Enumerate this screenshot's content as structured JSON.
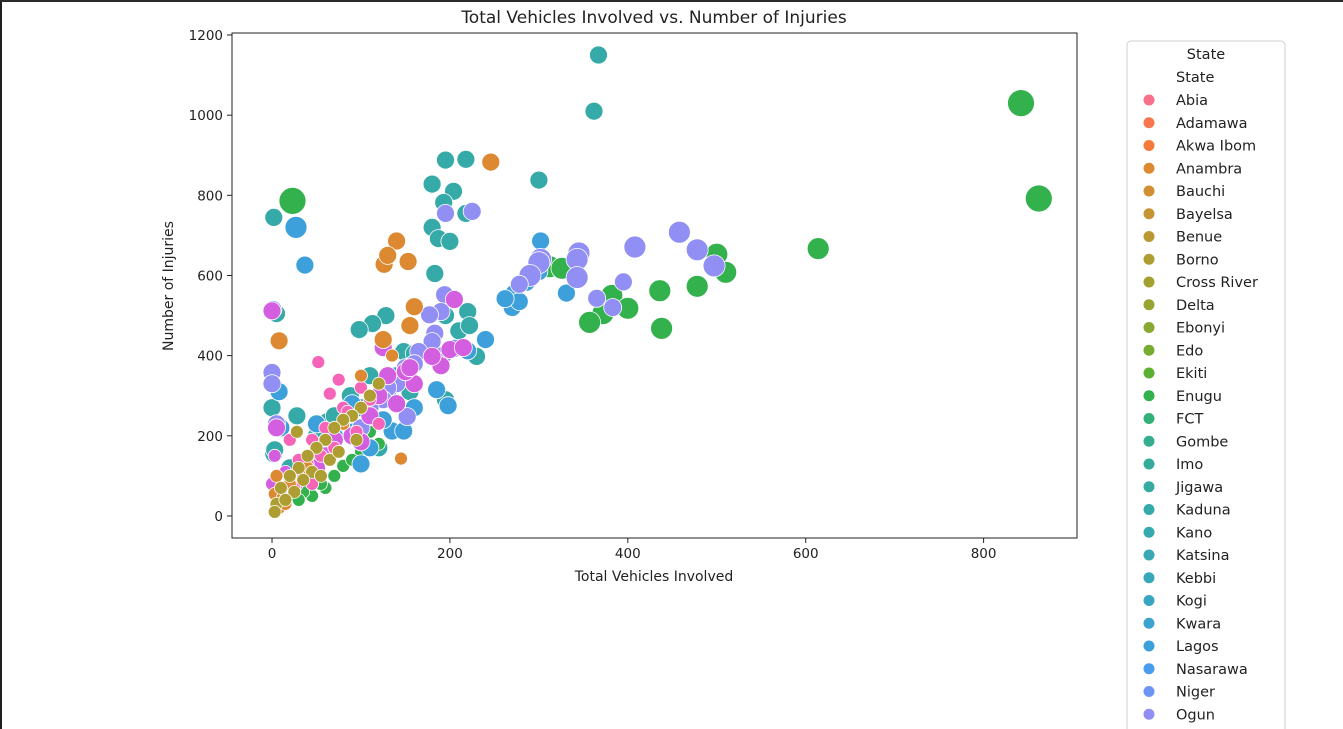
{
  "chart_data": {
    "type": "scatter",
    "title": "Total Vehicles Involved vs. Number of Injuries",
    "xlabel": "Total Vehicles Involved",
    "ylabel": "Number of Injuries",
    "xlim": [
      -45,
      905
    ],
    "ylim": [
      -55,
      1205
    ],
    "xticks": [
      0,
      200,
      400,
      600,
      800
    ],
    "yticks": [
      0,
      200,
      400,
      600,
      800,
      1000,
      1200
    ],
    "grid": false,
    "legend": {
      "title": "State",
      "subtitle": "State",
      "placement": "outside-right",
      "entries": [
        {
          "name": "Abia",
          "color": "#f77189"
        },
        {
          "name": "Adamawa",
          "color": "#f7754f"
        },
        {
          "name": "Akwa Ibom",
          "color": "#f5793a"
        },
        {
          "name": "Anambra",
          "color": "#dc8932"
        },
        {
          "name": "Bauchi",
          "color": "#d28e32"
        },
        {
          "name": "Bayelsa",
          "color": "#c69532"
        },
        {
          "name": "Benue",
          "color": "#bb9832"
        },
        {
          "name": "Borno",
          "color": "#ae9d31"
        },
        {
          "name": "Cross River",
          "color": "#a2a031"
        },
        {
          "name": "Delta",
          "color": "#97a431"
        },
        {
          "name": "Ebonyi",
          "color": "#89a832"
        },
        {
          "name": "Edo",
          "color": "#77ac31"
        },
        {
          "name": "Ekiti",
          "color": "#5cb031"
        },
        {
          "name": "Enugu",
          "color": "#32b14c"
        },
        {
          "name": "FCT",
          "color": "#33b07a"
        },
        {
          "name": "Gombe",
          "color": "#34ae8e"
        },
        {
          "name": "Imo",
          "color": "#35ac99"
        },
        {
          "name": "Jigawa",
          "color": "#35aba1"
        },
        {
          "name": "Kaduna",
          "color": "#36aaa8"
        },
        {
          "name": "Kano",
          "color": "#36a9ae"
        },
        {
          "name": "Katsina",
          "color": "#37a8b4"
        },
        {
          "name": "Kebbi",
          "color": "#38a7bb"
        },
        {
          "name": "Kogi",
          "color": "#39a5c3"
        },
        {
          "name": "Kwara",
          "color": "#3ba3cd"
        },
        {
          "name": "Lagos",
          "color": "#3da0da"
        },
        {
          "name": "Nasarawa",
          "color": "#4a9ced"
        },
        {
          "name": "Niger",
          "color": "#6d94f3"
        },
        {
          "name": "Ogun",
          "color": "#918ef4"
        }
      ]
    },
    "series": [
      {
        "color": "#36aaa8",
        "points": [
          [
            367,
            1150,
            2
          ],
          [
            362,
            1010,
            2
          ],
          [
            300,
            838,
            2
          ],
          [
            218,
            890,
            2
          ],
          [
            195,
            888,
            2
          ],
          [
            204,
            810,
            2
          ],
          [
            180,
            828,
            2
          ],
          [
            193,
            782,
            2
          ],
          [
            218,
            755,
            2
          ],
          [
            180,
            720,
            2
          ],
          [
            187,
            692,
            2
          ],
          [
            200,
            685,
            2
          ],
          [
            183,
            605,
            2
          ],
          [
            2,
            745,
            2
          ],
          [
            195,
            500,
            2
          ],
          [
            220,
            510,
            2
          ],
          [
            210,
            462,
            2
          ],
          [
            222,
            475,
            2
          ],
          [
            230,
            398,
            2
          ],
          [
            128,
            500,
            2
          ],
          [
            113,
            480,
            2
          ],
          [
            98,
            465,
            2
          ],
          [
            148,
            410,
            2
          ],
          [
            160,
            405,
            2
          ],
          [
            110,
            350,
            2
          ],
          [
            140,
            340,
            2
          ],
          [
            155,
            310,
            2
          ],
          [
            88,
            300,
            2
          ],
          [
            100,
            270,
            2
          ],
          [
            62,
            235,
            2
          ],
          [
            50,
            200,
            2
          ],
          [
            28,
            250,
            2
          ],
          [
            0,
            270,
            2
          ],
          [
            2,
            155,
            2
          ],
          [
            3,
            165,
            2
          ],
          [
            20,
            120,
            2
          ],
          [
            40,
            140,
            2
          ],
          [
            195,
            290,
            2
          ],
          [
            120,
            170,
            2
          ],
          [
            70,
            250,
            2
          ],
          [
            5,
            505,
            2
          ]
        ]
      },
      {
        "color": "#32b14c",
        "points": [
          [
            842,
            1030,
            4
          ],
          [
            862,
            792,
            4
          ],
          [
            23,
            786,
            4
          ],
          [
            614,
            667,
            3
          ],
          [
            500,
            653,
            3
          ],
          [
            510,
            608,
            3
          ],
          [
            478,
            573,
            3
          ],
          [
            436,
            562,
            3
          ],
          [
            438,
            468,
            3
          ],
          [
            382,
            550,
            3
          ],
          [
            400,
            518,
            3
          ],
          [
            372,
            505,
            3
          ],
          [
            357,
            483,
            3
          ],
          [
            312,
            622,
            3
          ],
          [
            326,
            618,
            3
          ],
          [
            100,
            160,
            1
          ],
          [
            80,
            125,
            1
          ],
          [
            60,
            70,
            1
          ],
          [
            45,
            50,
            1
          ],
          [
            90,
            140,
            1
          ],
          [
            120,
            180,
            1
          ],
          [
            70,
            100,
            1
          ],
          [
            55,
            80,
            1
          ],
          [
            35,
            60,
            1
          ],
          [
            110,
            210,
            1
          ],
          [
            65,
            155,
            1
          ],
          [
            30,
            40,
            1
          ]
        ]
      },
      {
        "color": "#3da0da",
        "points": [
          [
            27,
            720,
            3
          ],
          [
            37,
            626,
            2
          ],
          [
            302,
            686,
            2
          ],
          [
            331,
            556,
            2
          ],
          [
            300,
            610,
            2
          ],
          [
            286,
            583,
            2
          ],
          [
            272,
            555,
            2
          ],
          [
            270,
            520,
            2
          ],
          [
            278,
            535,
            2
          ],
          [
            262,
            542,
            2
          ],
          [
            240,
            440,
            2
          ],
          [
            220,
            412,
            2
          ],
          [
            198,
            275,
            2
          ],
          [
            185,
            315,
            2
          ],
          [
            160,
            270,
            2
          ],
          [
            135,
            212,
            2
          ],
          [
            148,
            212,
            2
          ],
          [
            100,
            130,
            2
          ],
          [
            92,
            210,
            2
          ],
          [
            110,
            170,
            2
          ],
          [
            130,
            300,
            2
          ],
          [
            140,
            350,
            2
          ],
          [
            125,
            240,
            2
          ],
          [
            90,
            280,
            2
          ],
          [
            70,
            200,
            2
          ],
          [
            60,
            180,
            2
          ],
          [
            8,
            310,
            2
          ],
          [
            10,
            220,
            2
          ],
          [
            50,
            230,
            2
          ]
        ]
      },
      {
        "color": "#918ef4",
        "points": [
          [
            458,
            708,
            3
          ],
          [
            478,
            664,
            3
          ],
          [
            497,
            624,
            3
          ],
          [
            408,
            671,
            3
          ],
          [
            395,
            584,
            2
          ],
          [
            383,
            520,
            2
          ],
          [
            365,
            543,
            2
          ],
          [
            345,
            656,
            3
          ],
          [
            343,
            640,
            3
          ],
          [
            343,
            595,
            3
          ],
          [
            302,
            640,
            3
          ],
          [
            300,
            632,
            3
          ],
          [
            290,
            600,
            3
          ],
          [
            278,
            578,
            2
          ],
          [
            225,
            760,
            2
          ],
          [
            194,
            552,
            2
          ],
          [
            190,
            510,
            2
          ],
          [
            177,
            502,
            2
          ],
          [
            183,
            456,
            2
          ],
          [
            180,
            435,
            2
          ],
          [
            205,
            418,
            2
          ],
          [
            192,
            400,
            2
          ],
          [
            165,
            410,
            2
          ],
          [
            160,
            380,
            2
          ],
          [
            150,
            370,
            2
          ],
          [
            140,
            330,
            2
          ],
          [
            130,
            320,
            2
          ],
          [
            125,
            290,
            2
          ],
          [
            110,
            270,
            2
          ],
          [
            100,
            220,
            2
          ],
          [
            90,
            200,
            2
          ],
          [
            0,
            358,
            2
          ],
          [
            0,
            330,
            2
          ],
          [
            5,
            230,
            2
          ],
          [
            1,
            515,
            2
          ],
          [
            195,
            755,
            2
          ],
          [
            152,
            248,
            2
          ]
        ]
      },
      {
        "color": "#d45ee0",
        "points": [
          [
            0,
            512,
            2
          ],
          [
            205,
            540,
            2
          ],
          [
            190,
            375,
            2
          ],
          [
            200,
            415,
            2
          ],
          [
            180,
            398,
            2
          ],
          [
            160,
            330,
            2
          ],
          [
            150,
            360,
            2
          ],
          [
            130,
            350,
            2
          ],
          [
            120,
            300,
            2
          ],
          [
            110,
            250,
            2
          ],
          [
            100,
            185,
            2
          ],
          [
            90,
            200,
            2
          ],
          [
            70,
            190,
            2
          ],
          [
            60,
            150,
            2
          ],
          [
            50,
            120,
            2
          ],
          [
            40,
            100,
            2
          ],
          [
            25,
            80,
            2
          ],
          [
            10,
            60,
            2
          ],
          [
            5,
            220,
            2
          ],
          [
            140,
            280,
            2
          ],
          [
            125,
            420,
            2
          ],
          [
            155,
            370,
            2
          ],
          [
            215,
            420,
            2
          ],
          [
            0,
            80,
            1
          ],
          [
            3,
            150,
            1
          ],
          [
            15,
            110,
            1
          ]
        ]
      },
      {
        "color": "#f564b8",
        "points": [
          [
            52,
            384,
            1
          ],
          [
            75,
            340,
            1
          ],
          [
            65,
            305,
            1
          ],
          [
            100,
            320,
            1
          ],
          [
            80,
            270,
            1
          ],
          [
            60,
            220,
            1
          ],
          [
            45,
            190,
            1
          ],
          [
            40,
            130,
            1
          ],
          [
            30,
            110,
            1
          ],
          [
            20,
            90,
            1
          ],
          [
            10,
            60,
            1
          ],
          [
            5,
            40,
            1
          ],
          [
            85,
            260,
            1
          ],
          [
            95,
            210,
            1
          ],
          [
            55,
            150,
            1
          ],
          [
            35,
            100,
            1
          ],
          [
            25,
            70,
            1
          ],
          [
            15,
            40,
            1
          ],
          [
            120,
            230,
            1
          ],
          [
            70,
            170,
            1
          ],
          [
            110,
            290,
            1
          ],
          [
            20,
            190,
            1
          ],
          [
            30,
            140,
            1
          ],
          [
            45,
            80,
            1
          ]
        ]
      },
      {
        "color": "#dc8932",
        "points": [
          [
            246,
            883,
            2
          ],
          [
            140,
            686,
            2
          ],
          [
            153,
            635,
            2
          ],
          [
            126,
            628,
            2
          ],
          [
            130,
            650,
            2
          ],
          [
            8,
            437,
            2
          ],
          [
            160,
            522,
            2
          ],
          [
            155,
            475,
            2
          ],
          [
            145,
            143,
            1
          ],
          [
            125,
            440,
            2
          ],
          [
            135,
            400,
            1
          ],
          [
            100,
            350,
            1
          ],
          [
            60,
            190,
            1
          ],
          [
            40,
            120,
            1
          ],
          [
            20,
            80,
            1
          ],
          [
            80,
            230,
            1
          ],
          [
            4,
            15,
            1
          ],
          [
            8,
            20,
            1
          ],
          [
            15,
            30,
            1
          ],
          [
            5,
            100,
            1
          ],
          [
            3,
            55,
            1
          ],
          [
            12,
            45,
            1
          ]
        ]
      },
      {
        "color": "#ae9d31",
        "points": [
          [
            100,
            270,
            1
          ],
          [
            90,
            250,
            1
          ],
          [
            80,
            240,
            1
          ],
          [
            70,
            220,
            1
          ],
          [
            60,
            190,
            1
          ],
          [
            50,
            170,
            1
          ],
          [
            40,
            150,
            1
          ],
          [
            30,
            120,
            1
          ],
          [
            20,
            100,
            1
          ],
          [
            10,
            70,
            1
          ],
          [
            5,
            30,
            1
          ],
          [
            110,
            300,
            1
          ],
          [
            120,
            330,
            1
          ],
          [
            65,
            140,
            1
          ],
          [
            45,
            110,
            1
          ],
          [
            25,
            60,
            1
          ],
          [
            15,
            40,
            1
          ],
          [
            35,
            90,
            1
          ],
          [
            55,
            100,
            1
          ],
          [
            75,
            160,
            1
          ],
          [
            95,
            190,
            1
          ],
          [
            28,
            210,
            1
          ],
          [
            3,
            10,
            1
          ]
        ]
      }
    ]
  }
}
